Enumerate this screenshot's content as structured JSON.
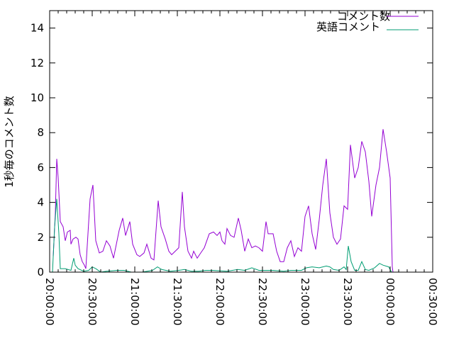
{
  "chart_data": {
    "type": "line",
    "title": "",
    "xlabel": "",
    "ylabel": "1秒毎のコメント数",
    "xlim": [
      "20:00:00",
      "00:30:00"
    ],
    "ylim": [
      0,
      15
    ],
    "x_ticks": [
      "20:00:00",
      "20:30:00",
      "21:00:00",
      "21:30:00",
      "22:00:00",
      "22:30:00",
      "23:00:00",
      "23:30:00",
      "00:00:00",
      "00:30:00"
    ],
    "y_ticks": [
      "0",
      "2",
      "4",
      "6",
      "8",
      "10",
      "12",
      "14"
    ],
    "grid": false,
    "legend_position": "top-right",
    "series": [
      {
        "name": "コメント数",
        "color": "#9400d3",
        "points": [
          [
            "20:02:30",
            0.9
          ],
          [
            "20:04:00",
            3.4
          ],
          [
            "20:05:00",
            6.5
          ],
          [
            "20:06:00",
            5.4
          ],
          [
            "20:07:30",
            2.9
          ],
          [
            "20:09:30",
            2.6
          ],
          [
            "20:11:00",
            1.8
          ],
          [
            "20:12:30",
            2.3
          ],
          [
            "20:14:30",
            2.4
          ],
          [
            "20:15:00",
            1.6
          ],
          [
            "20:16:30",
            1.9
          ],
          [
            "20:18:30",
            2.0
          ],
          [
            "20:20:00",
            1.9
          ],
          [
            "20:21:30",
            1.0
          ],
          [
            "20:23:00",
            0.6
          ],
          [
            "20:24:30",
            0.4
          ],
          [
            "20:25:30",
            0.2
          ],
          [
            "20:27:00",
            2.2
          ],
          [
            "20:28:30",
            4.2
          ],
          [
            "20:30:30",
            5.0
          ],
          [
            "20:32:30",
            1.8
          ],
          [
            "20:35:00",
            1.1
          ],
          [
            "20:37:30",
            1.2
          ],
          [
            "20:40:00",
            1.8
          ],
          [
            "20:42:30",
            1.5
          ],
          [
            "20:45:00",
            0.8
          ],
          [
            "20:46:30",
            1.4
          ],
          [
            "20:49:00",
            2.4
          ],
          [
            "20:51:30",
            3.1
          ],
          [
            "20:53:30",
            2.1
          ],
          [
            "20:56:30",
            2.9
          ],
          [
            "20:58:30",
            1.6
          ],
          [
            "21:01:30",
            1.0
          ],
          [
            "21:03:30",
            0.9
          ],
          [
            "21:06:30",
            1.1
          ],
          [
            "21:08:30",
            1.6
          ],
          [
            "21:11:30",
            0.8
          ],
          [
            "21:13:30",
            0.7
          ],
          [
            "21:16:30",
            4.1
          ],
          [
            "21:18:30",
            2.6
          ],
          [
            "21:21:30",
            1.9
          ],
          [
            "21:24:00",
            1.2
          ],
          [
            "21:26:00",
            1.0
          ],
          [
            "21:28:30",
            1.2
          ],
          [
            "21:31:00",
            1.4
          ],
          [
            "21:33:30",
            4.6
          ],
          [
            "21:35:00",
            2.6
          ],
          [
            "21:37:30",
            1.2
          ],
          [
            "21:40:00",
            0.8
          ],
          [
            "21:41:30",
            1.2
          ],
          [
            "21:44:00",
            0.8
          ],
          [
            "21:46:30",
            1.1
          ],
          [
            "21:49:00",
            1.4
          ],
          [
            "21:52:30",
            2.2
          ],
          [
            "21:55:30",
            2.3
          ],
          [
            "21:58:00",
            2.1
          ],
          [
            "22:00:00",
            2.3
          ],
          [
            "22:01:30",
            1.8
          ],
          [
            "22:03:30",
            1.6
          ],
          [
            "22:05:00",
            2.5
          ],
          [
            "22:07:30",
            2.1
          ],
          [
            "22:10:00",
            2.0
          ],
          [
            "22:13:00",
            3.1
          ],
          [
            "22:15:00",
            2.4
          ],
          [
            "22:17:30",
            1.2
          ],
          [
            "22:20:00",
            1.9
          ],
          [
            "22:22:30",
            1.4
          ],
          [
            "22:25:00",
            1.5
          ],
          [
            "22:27:30",
            1.4
          ],
          [
            "22:30:00",
            1.2
          ],
          [
            "22:32:30",
            2.9
          ],
          [
            "22:34:00",
            2.2
          ],
          [
            "22:37:30",
            2.2
          ],
          [
            "22:40:00",
            1.2
          ],
          [
            "22:42:30",
            0.6
          ],
          [
            "22:45:00",
            0.6
          ],
          [
            "22:47:30",
            1.4
          ],
          [
            "22:50:00",
            1.8
          ],
          [
            "22:52:30",
            0.9
          ],
          [
            "22:55:00",
            1.4
          ],
          [
            "22:57:30",
            1.2
          ],
          [
            "23:00:00",
            3.2
          ],
          [
            "23:02:30",
            3.8
          ],
          [
            "23:05:00",
            2.2
          ],
          [
            "23:07:30",
            1.3
          ],
          [
            "23:10:00",
            3.0
          ],
          [
            "23:12:30",
            5.0
          ],
          [
            "23:15:00",
            6.5
          ],
          [
            "23:17:30",
            3.4
          ],
          [
            "23:20:00",
            2.0
          ],
          [
            "23:22:30",
            1.6
          ],
          [
            "23:25:00",
            1.9
          ],
          [
            "23:27:30",
            3.8
          ],
          [
            "23:30:00",
            3.6
          ],
          [
            "23:32:00",
            7.3
          ],
          [
            "23:35:00",
            5.4
          ],
          [
            "23:37:30",
            6.0
          ],
          [
            "23:40:00",
            7.5
          ],
          [
            "23:42:30",
            6.9
          ],
          [
            "23:45:00",
            5.2
          ],
          [
            "23:47:00",
            3.2
          ],
          [
            "23:50:00",
            5.0
          ],
          [
            "23:52:30",
            6.0
          ],
          [
            "23:55:00",
            8.2
          ],
          [
            "23:57:30",
            6.9
          ],
          [
            "00:00:00",
            5.4
          ],
          [
            "00:01:30",
            0.3
          ],
          [
            "00:02:00",
            0
          ]
        ]
      },
      {
        "name": "英語コメント",
        "color": "#009e73",
        "points": [
          [
            "20:02:00",
            0
          ],
          [
            "20:03:30",
            2.6
          ],
          [
            "20:05:00",
            4.2
          ],
          [
            "20:06:30",
            2.2
          ],
          [
            "20:07:30",
            0.2
          ],
          [
            "20:09:00",
            0.2
          ],
          [
            "20:11:00",
            0.2
          ],
          [
            "20:15:00",
            0.1
          ],
          [
            "20:17:00",
            0.8
          ],
          [
            "20:18:00",
            0.4
          ],
          [
            "20:20:00",
            0.2
          ],
          [
            "20:24:00",
            0.05
          ],
          [
            "20:27:30",
            0.1
          ],
          [
            "20:30:00",
            0.3
          ],
          [
            "20:32:30",
            0.2
          ],
          [
            "20:36:00",
            0
          ],
          [
            "20:40:00",
            0.05
          ],
          [
            "20:47:30",
            0.1
          ],
          [
            "20:52:30",
            0.1
          ],
          [
            "20:57:30",
            0
          ],
          [
            "21:05:00",
            0
          ],
          [
            "21:12:30",
            0.1
          ],
          [
            "21:16:00",
            0.3
          ],
          [
            "21:19:00",
            0.15
          ],
          [
            "21:25:00",
            0.05
          ],
          [
            "21:31:00",
            0.1
          ],
          [
            "21:35:00",
            0.15
          ],
          [
            "21:40:00",
            0.05
          ],
          [
            "21:45:00",
            0.05
          ],
          [
            "21:50:00",
            0.1
          ],
          [
            "21:55:00",
            0.1
          ],
          [
            "22:05:00",
            0.05
          ],
          [
            "22:12:30",
            0.15
          ],
          [
            "22:17:30",
            0.1
          ],
          [
            "22:22:30",
            0.25
          ],
          [
            "22:27:30",
            0.1
          ],
          [
            "22:32:30",
            0.1
          ],
          [
            "22:37:30",
            0.1
          ],
          [
            "22:45:00",
            0.05
          ],
          [
            "22:50:00",
            0.1
          ],
          [
            "22:57:30",
            0.1
          ],
          [
            "23:01:00",
            0.25
          ],
          [
            "23:05:00",
            0.3
          ],
          [
            "23:10:00",
            0.25
          ],
          [
            "23:15:00",
            0.35
          ],
          [
            "23:17:30",
            0.3
          ],
          [
            "23:20:00",
            0.15
          ],
          [
            "23:24:00",
            0.1
          ],
          [
            "23:27:30",
            0.3
          ],
          [
            "23:29:00",
            0.15
          ],
          [
            "23:30:30",
            1.5
          ],
          [
            "23:32:30",
            0.6
          ],
          [
            "23:35:00",
            0.1
          ],
          [
            "23:37:30",
            0.1
          ],
          [
            "23:40:00",
            0.6
          ],
          [
            "23:42:30",
            0.15
          ],
          [
            "23:45:00",
            0.1
          ],
          [
            "23:49:00",
            0.25
          ],
          [
            "23:52:30",
            0.5
          ],
          [
            "23:55:00",
            0.4
          ],
          [
            "23:59:00",
            0.3
          ],
          [
            "00:01:00",
            0
          ]
        ]
      }
    ]
  }
}
